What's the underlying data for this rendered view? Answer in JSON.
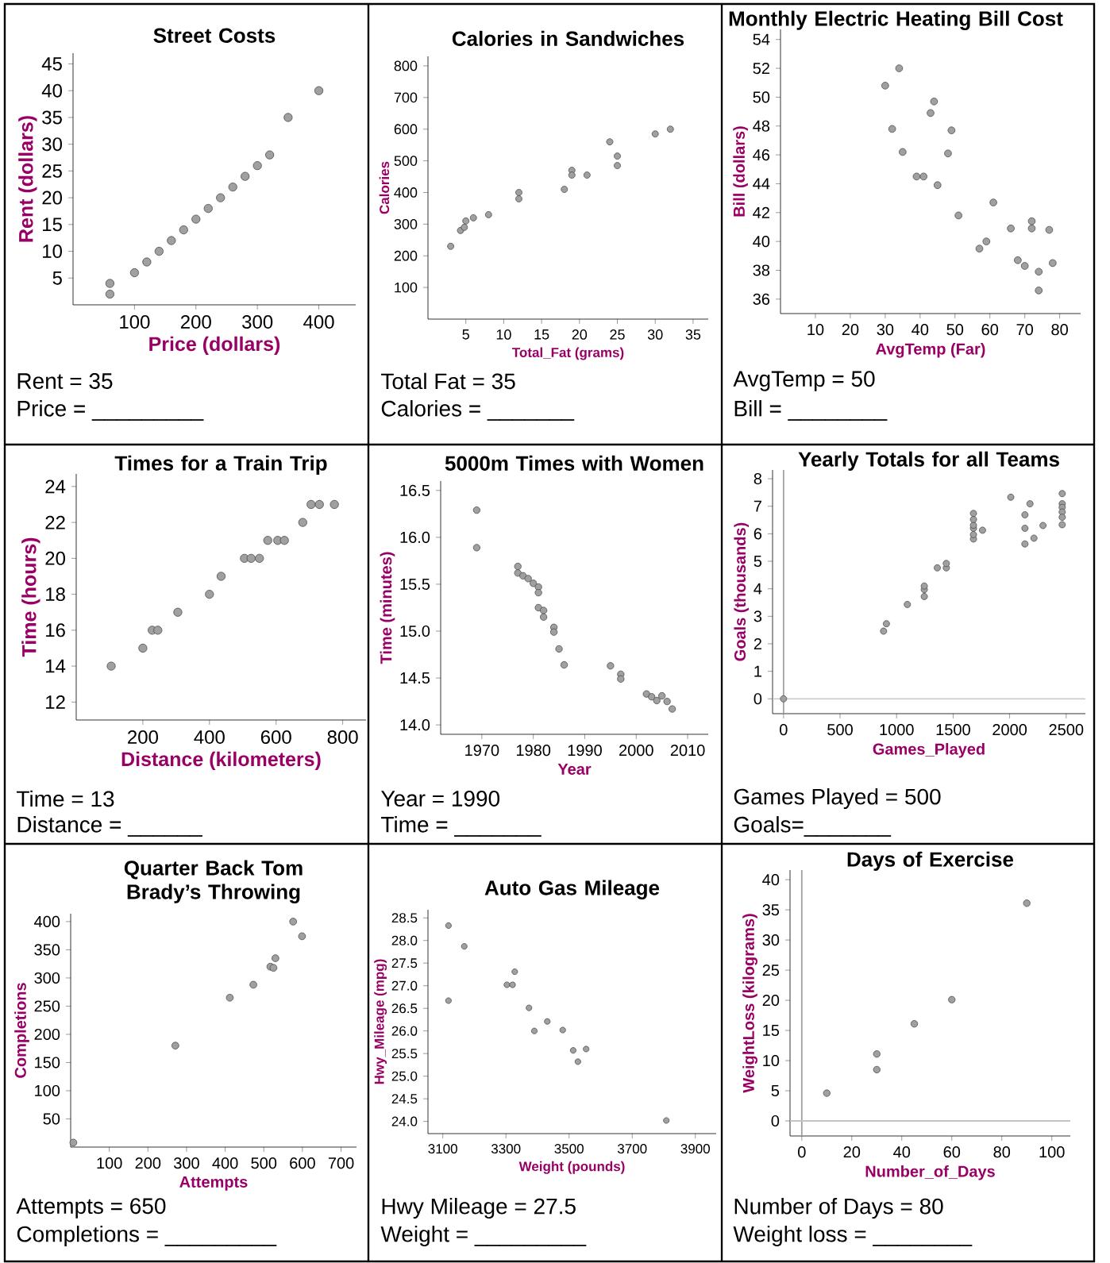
{
  "chart_data": [
    {
      "type": "scatter",
      "title": "Street Costs",
      "xlabel": "Price (dollars)",
      "ylabel": "Rent (dollars)",
      "marker": "circle",
      "color": "#a0a0a0",
      "xlim": [
        0,
        460
      ],
      "ylim": [
        0,
        47
      ],
      "xticks": [
        100,
        200,
        300,
        400
      ],
      "yticks": [
        5,
        10,
        15,
        20,
        25,
        30,
        35,
        40,
        45
      ],
      "x": [
        60,
        60,
        100,
        120,
        140,
        160,
        180,
        200,
        220,
        240,
        260,
        280,
        300,
        320,
        350,
        400
      ],
      "values": [
        2,
        4,
        6,
        8,
        10,
        12,
        14,
        16,
        18,
        20,
        22,
        24,
        26,
        28,
        35,
        40
      ],
      "annotations": [
        "Rent = 35",
        "Price = _________"
      ]
    },
    {
      "type": "scatter",
      "title": "Calories in Sandwiches",
      "xlabel": "Total_Fat (grams)",
      "ylabel": "Calories",
      "marker": "circle",
      "color": "#a0a0a0",
      "xlim": [
        0,
        37
      ],
      "ylim": [
        0,
        830
      ],
      "xticks": [
        5,
        10,
        15,
        20,
        25,
        30,
        35
      ],
      "yticks": [
        100,
        200,
        300,
        400,
        500,
        600,
        700,
        800
      ],
      "x": [
        3,
        4.3,
        4.8,
        5,
        6,
        8,
        12,
        12,
        18,
        19,
        19,
        21,
        24,
        25,
        25,
        30,
        32
      ],
      "values": [
        230,
        280,
        290,
        310,
        320,
        330,
        400,
        380,
        410,
        470,
        455,
        455,
        560,
        515,
        485,
        585,
        600
      ],
      "annotations": [
        "Total Fat = 35",
        "Calories = _______"
      ]
    },
    {
      "type": "scatter",
      "title": "Monthly Electric Heating Bill Cost",
      "xlabel": "AvgTemp (Far)",
      "ylabel": "Bill (dollars)",
      "marker": "circle",
      "color": "#a0a0a0",
      "xlim": [
        0,
        86
      ],
      "ylim": [
        35,
        54.7
      ],
      "xticks": [
        10,
        20,
        30,
        40,
        50,
        60,
        70,
        80
      ],
      "yticks": [
        36,
        38,
        40,
        42,
        44,
        46,
        48,
        50,
        52,
        54
      ],
      "x": [
        30,
        34,
        32,
        35,
        39,
        41,
        43,
        44,
        45,
        48,
        49,
        51,
        57,
        59,
        61,
        66,
        68,
        70,
        72,
        72,
        74,
        74,
        77,
        78
      ],
      "values": [
        50.8,
        52,
        47.8,
        46.2,
        44.5,
        44.5,
        48.9,
        49.7,
        43.9,
        46.1,
        47.7,
        41.8,
        39.5,
        40,
        42.7,
        40.9,
        38.7,
        38.3,
        41.4,
        40.9,
        37.9,
        36.6,
        40.8,
        38.5
      ],
      "annotations": [
        "AvgTemp = 50",
        "Bill = ________"
      ]
    },
    {
      "type": "scatter",
      "title": "Times for a Train Trip",
      "xlabel": "Distance (kilometers)",
      "ylabel": "Time (hours)",
      "marker": "circle",
      "color": "#a0a0a0",
      "xlim": [
        0,
        870
      ],
      "ylim": [
        11,
        24.7
      ],
      "xticks": [
        200,
        400,
        600,
        800
      ],
      "yticks": [
        12,
        14,
        16,
        18,
        20,
        22,
        24
      ],
      "x": [
        105,
        200,
        228,
        245,
        305,
        400,
        435,
        505,
        525,
        550,
        575,
        605,
        625,
        680,
        705,
        730,
        775
      ],
      "values": [
        14,
        15,
        16,
        16,
        17,
        18,
        19,
        20,
        20,
        20,
        21,
        21,
        21,
        22,
        23,
        23,
        23
      ],
      "annotations": [
        "Time = 13",
        "Distance = ______"
      ]
    },
    {
      "type": "scatter",
      "title": "5000m Times with Women",
      "xlabel": "Year",
      "ylabel": "Time (minutes)",
      "marker": "circle",
      "color": "#a0a0a0",
      "xlim": [
        1962,
        2014
      ],
      "ylim": [
        13.9,
        16.6
      ],
      "xticks": [
        1970,
        1980,
        1990,
        2000,
        2010
      ],
      "yticks": [
        {
          "value": 14,
          "label": "14.0"
        },
        14.5,
        {
          "value": 15,
          "label": "15.0"
        },
        15.5,
        {
          "value": 16,
          "label": "16.0"
        },
        16.5
      ],
      "x": [
        1969,
        1969,
        1977,
        1977,
        1978,
        1979,
        1980,
        1981,
        1981,
        1981,
        1982,
        1982,
        1984,
        1984,
        1985,
        1986,
        1995,
        1997,
        1997,
        2002,
        2003,
        2004,
        2005,
        2006,
        2007
      ],
      "values": [
        16.29,
        15.89,
        15.69,
        15.62,
        15.59,
        15.56,
        15.51,
        15.47,
        15.41,
        15.25,
        15.22,
        15.15,
        15.04,
        14.99,
        14.81,
        14.64,
        14.63,
        14.54,
        14.49,
        14.33,
        14.3,
        14.26,
        14.31,
        14.25,
        14.17
      ],
      "annotations": [
        "Year = 1990",
        "Time = _______"
      ]
    },
    {
      "type": "scatter",
      "title": "Yearly Totals for all Teams",
      "xlabel": "Games_Played",
      "ylabel": "Goals (thousands)",
      "marker": "circle",
      "color": "#a0a0a0",
      "xlim": [
        -97,
        2670
      ],
      "ylim": [
        -0.54,
        8.32
      ],
      "xticks": [
        0,
        500,
        1000,
        1500,
        2000,
        2500
      ],
      "yticks": [
        0,
        1,
        2,
        3,
        4,
        5,
        6,
        7,
        8
      ],
      "ref_lines": [
        {
          "axis": "x",
          "value": 0,
          "color": "#a0a0a0"
        },
        {
          "axis": "y",
          "value": 0,
          "color": "#c4c4c4"
        }
      ],
      "x": [
        0,
        885,
        910,
        1095,
        1245,
        1245,
        1245,
        1360,
        1440,
        1440,
        1680,
        1680,
        1680,
        1680,
        1680,
        1680,
        1760,
        2010,
        2135,
        2135,
        2135,
        2180,
        2215,
        2295,
        2465,
        2465,
        2465,
        2465,
        2465,
        2465
      ],
      "values": [
        0,
        2.46,
        2.73,
        3.43,
        3.72,
        3.97,
        4.1,
        4.76,
        4.76,
        4.92,
        5.81,
        5.97,
        6.2,
        6.31,
        6.52,
        6.74,
        6.13,
        7.33,
        6.69,
        6.2,
        5.63,
        7.09,
        5.84,
        6.3,
        7.46,
        7.09,
        6.96,
        6.79,
        6.6,
        6.33
      ],
      "annotations": [
        "Games Played = 500",
        "Goals=_______"
      ]
    },
    {
      "type": "scatter",
      "title": "Quarter Back Tom Brady’s Throwing",
      "xlabel": "Attempts",
      "ylabel": "Completions",
      "marker": "circle",
      "color": "#a0a0a0",
      "xlim": [
        0,
        740
      ],
      "ylim": [
        0,
        414
      ],
      "xticks": [
        100,
        200,
        300,
        400,
        500,
        600,
        700
      ],
      "yticks": [
        50,
        100,
        150,
        200,
        250,
        300,
        350,
        400
      ],
      "x": [
        7,
        271,
        412,
        473,
        517,
        525,
        530,
        576,
        599
      ],
      "values": [
        8,
        180,
        265,
        288,
        320,
        318,
        335,
        400,
        374
      ],
      "annotations": [
        "Attempts = 650",
        "Completions = _________"
      ]
    },
    {
      "type": "scatter",
      "title": "Auto Gas Mileage",
      "xlabel": "Weight (pounds)",
      "ylabel": "Hwy_Mileage (mpg)",
      "marker": "circle",
      "color": "#a0a0a0",
      "xlim": [
        3053,
        3966
      ],
      "ylim": [
        23.73,
        28.68
      ],
      "xticks": [
        3100,
        3300,
        3500,
        3700,
        3900
      ],
      "yticks": [
        {
          "value": 24,
          "label": "24.0"
        },
        24.5,
        {
          "value": 25,
          "label": "25.0"
        },
        25.5,
        {
          "value": 26,
          "label": "26.0"
        },
        26.5,
        {
          "value": 27,
          "label": "27.0"
        },
        27.5,
        {
          "value": 28,
          "label": "28.0"
        },
        28.5
      ],
      "x": [
        3118,
        3118,
        3168,
        3303,
        3321,
        3328,
        3373,
        3390,
        3431,
        3480,
        3513,
        3528,
        3554,
        3808
      ],
      "values": [
        28.33,
        26.67,
        27.87,
        27.02,
        27.02,
        27.31,
        26.51,
        26.0,
        26.21,
        26.02,
        25.57,
        25.32,
        25.6,
        24.02
      ],
      "annotations": [
        "Hwy Mileage = 27.5",
        "Weight = _________"
      ]
    },
    {
      "type": "scatter",
      "title": "Days of Exercise",
      "xlabel": "Number_of_Days",
      "ylabel": "WeightLoss (kilograms)",
      "marker": "circle",
      "color": "#a0a0a0",
      "xlim": [
        -4.7,
        107.4
      ],
      "ylim": [
        -2.5,
        41.6
      ],
      "xticks": [
        0,
        20,
        40,
        60,
        80,
        100
      ],
      "yticks": [
        0,
        5,
        10,
        15,
        20,
        25,
        30,
        35,
        40
      ],
      "ref_lines": [
        {
          "axis": "x",
          "value": 0,
          "color": "#a0a0a0"
        },
        {
          "axis": "y",
          "value": 0,
          "color": "#c4c4c4"
        }
      ],
      "x": [
        10,
        30,
        30,
        45,
        60,
        90
      ],
      "values": [
        4.6,
        11.1,
        8.5,
        16.1,
        20.1,
        36.1
      ],
      "annotations": [
        "Number of Days = 80",
        "Weight loss = ________"
      ]
    }
  ]
}
